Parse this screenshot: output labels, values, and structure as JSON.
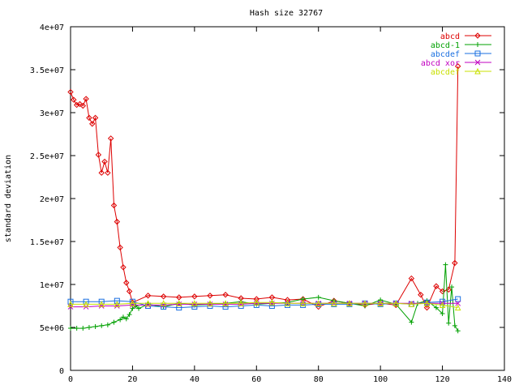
{
  "chart_data": {
    "type": "line",
    "title": "Hash size 32767",
    "xlabel": "",
    "ylabel": "standard deviation",
    "xlim": [
      0,
      140
    ],
    "ylim": [
      0,
      40000000
    ],
    "x_ticks": [
      0,
      20,
      40,
      60,
      80,
      100,
      120,
      140
    ],
    "x_tick_labels": [
      "0",
      "20",
      "40",
      "60",
      "80",
      "100",
      "120",
      "140"
    ],
    "y_ticks": [
      0,
      5000000,
      10000000,
      15000000,
      20000000,
      25000000,
      30000000,
      35000000,
      40000000
    ],
    "y_tick_labels": [
      "0",
      "5e+06",
      "1e+07",
      "1.5e+07",
      "2e+07",
      "2.5e+07",
      "3e+07",
      "3.5e+07",
      "4e+07"
    ],
    "grid": false,
    "legend_position": "top-right",
    "series": [
      {
        "name": "abcd",
        "color": "#dd0000",
        "marker": "diamond",
        "x": [
          0,
          1,
          2,
          3,
          4,
          5,
          6,
          7,
          8,
          9,
          10,
          11,
          12,
          13,
          14,
          15,
          16,
          17,
          18,
          19,
          20,
          25,
          30,
          35,
          40,
          45,
          50,
          55,
          60,
          65,
          70,
          75,
          80,
          85,
          90,
          95,
          100,
          105,
          110,
          113,
          115,
          118,
          120,
          122,
          124,
          125
        ],
        "y": [
          32400000,
          31500000,
          30900000,
          31000000,
          30800000,
          31600000,
          29400000,
          28700000,
          29400000,
          25100000,
          23000000,
          24300000,
          23000000,
          27000000,
          19200000,
          17300000,
          14300000,
          12000000,
          10200000,
          9200000,
          7900000,
          8700000,
          8600000,
          8500000,
          8600000,
          8700000,
          8800000,
          8400000,
          8300000,
          8500000,
          8200000,
          8300000,
          7400000,
          8100000,
          7800000,
          7600000,
          7800000,
          7600000,
          10700000,
          8800000,
          7300000,
          9800000,
          9200000,
          9400000,
          12500000,
          35400000
        ]
      },
      {
        "name": "abcd-1",
        "color": "#00a000",
        "marker": "plus",
        "x": [
          0,
          2,
          4,
          6,
          8,
          10,
          12,
          14,
          16,
          17,
          18,
          19,
          20,
          21,
          22,
          25,
          30,
          35,
          40,
          45,
          50,
          55,
          60,
          65,
          70,
          75,
          80,
          85,
          90,
          95,
          100,
          105,
          110,
          112,
          115,
          118,
          120,
          121,
          122,
          123,
          124,
          125
        ],
        "y": [
          4900000,
          4900000,
          4900000,
          5000000,
          5100000,
          5200000,
          5300000,
          5600000,
          5900000,
          6200000,
          6000000,
          6500000,
          7200000,
          7500000,
          7200000,
          7700000,
          7400000,
          7800000,
          7600000,
          7700000,
          7800000,
          8000000,
          7700000,
          7800000,
          7900000,
          8300000,
          8500000,
          8100000,
          7800000,
          7500000,
          8200000,
          7700000,
          5600000,
          7800000,
          8100000,
          7300000,
          6600000,
          12300000,
          5500000,
          9700000,
          5200000,
          4600000
        ]
      },
      {
        "name": "abcdef",
        "color": "#1a6fe0",
        "marker": "square",
        "x": [
          0,
          5,
          10,
          15,
          20,
          25,
          30,
          35,
          40,
          45,
          50,
          55,
          60,
          65,
          70,
          75,
          80,
          85,
          90,
          95,
          100,
          105,
          110,
          115,
          120,
          125
        ],
        "y": [
          8000000,
          8000000,
          8000000,
          8100000,
          8000000,
          7500000,
          7400000,
          7300000,
          7400000,
          7500000,
          7400000,
          7500000,
          7600000,
          7500000,
          7600000,
          7600000,
          7700000,
          7700000,
          7700000,
          7800000,
          7700000,
          7800000,
          7700000,
          7900000,
          8000000,
          8300000
        ]
      },
      {
        "name": "abcd xor",
        "color": "#c000c0",
        "marker": "cross",
        "x": [
          0,
          5,
          10,
          15,
          20,
          25,
          30,
          35,
          40,
          45,
          50,
          55,
          60,
          65,
          70,
          75,
          80,
          85,
          90,
          95,
          100,
          105,
          110,
          115,
          120,
          125
        ],
        "y": [
          7400000,
          7400000,
          7500000,
          7500000,
          7600000,
          7600000,
          7600000,
          7700000,
          7700000,
          7700000,
          7700000,
          7700000,
          7800000,
          7800000,
          7800000,
          7800000,
          7800000,
          7800000,
          7800000,
          7800000,
          7800000,
          7800000,
          7800000,
          7800000,
          7800000,
          7800000
        ]
      },
      {
        "name": "abcdef",
        "color": "#c8e000",
        "marker": "triangle",
        "x": [
          0,
          5,
          10,
          15,
          20,
          25,
          30,
          35,
          40,
          45,
          50,
          55,
          60,
          65,
          70,
          75,
          80,
          85,
          90,
          95,
          100,
          105,
          110,
          115,
          120,
          125
        ],
        "y": [
          7700000,
          7700000,
          7700000,
          7700000,
          7800000,
          7800000,
          7800000,
          7800000,
          7800000,
          7800000,
          7800000,
          7800000,
          7900000,
          7900000,
          7800000,
          7800000,
          7800000,
          7800000,
          7800000,
          7800000,
          7800000,
          7800000,
          7700000,
          7800000,
          7600000,
          7300000
        ]
      }
    ]
  }
}
